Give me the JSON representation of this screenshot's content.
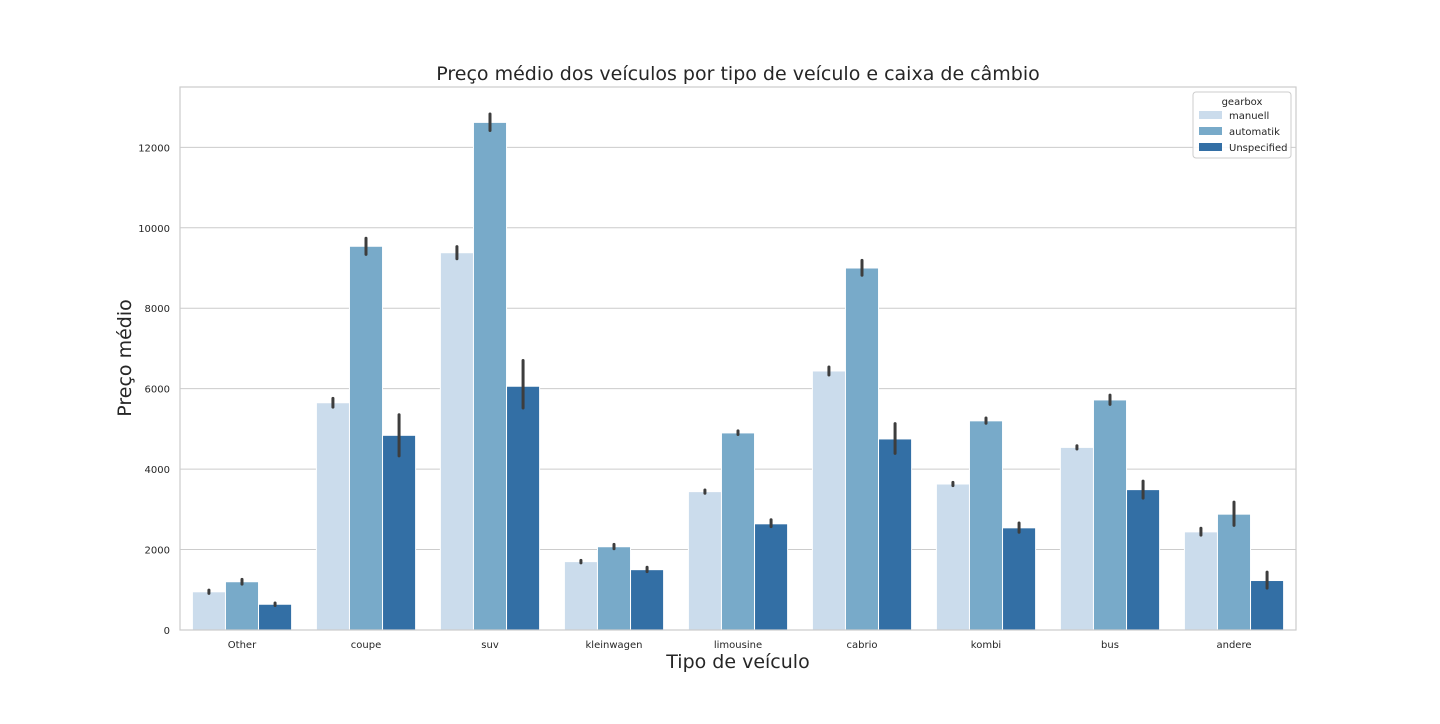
{
  "chart_data": {
    "type": "bar",
    "title": "Preço médio dos veículos por tipo de veículo e caixa de câmbio",
    "xlabel": "Tipo de veículo",
    "ylabel": "Preço médio",
    "categories": [
      "Other",
      "coupe",
      "suv",
      "kleinwagen",
      "limousine",
      "cabrio",
      "kombi",
      "bus",
      "andere"
    ],
    "ylim": [
      0,
      13500
    ],
    "yticks": [
      0,
      2000,
      4000,
      6000,
      8000,
      10000,
      12000
    ],
    "grid": true,
    "legend": {
      "title": "gearbox",
      "position": "top-right"
    },
    "series": [
      {
        "name": "manuell",
        "color": "#cbdcec",
        "values": [
          950,
          5650,
          9380,
          1700,
          3440,
          6440,
          3630,
          4540,
          2440
        ],
        "error_low": [
          910,
          5540,
          9230,
          1670,
          3400,
          6340,
          3590,
          4500,
          2360
        ],
        "error_high": [
          990,
          5760,
          9530,
          1730,
          3480,
          6540,
          3670,
          4580,
          2530
        ]
      },
      {
        "name": "automatik",
        "color": "#78aac9",
        "values": [
          1200,
          9540,
          12620,
          2070,
          4900,
          9000,
          5200,
          5720,
          2880
        ],
        "error_low": [
          1140,
          9340,
          12420,
          2020,
          4860,
          8820,
          5140,
          5610,
          2600
        ],
        "error_high": [
          1260,
          9740,
          12830,
          2130,
          4950,
          9190,
          5270,
          5840,
          3180
        ]
      },
      {
        "name": "Unspecified",
        "color": "#336fa5",
        "values": [
          640,
          4840,
          6060,
          1500,
          2640,
          4750,
          2540,
          3490,
          1230
        ],
        "error_low": [
          610,
          4330,
          5520,
          1450,
          2570,
          4390,
          2430,
          3280,
          1040
        ],
        "error_high": [
          670,
          5350,
          6700,
          1560,
          2740,
          5130,
          2660,
          3700,
          1440
        ]
      }
    ]
  }
}
